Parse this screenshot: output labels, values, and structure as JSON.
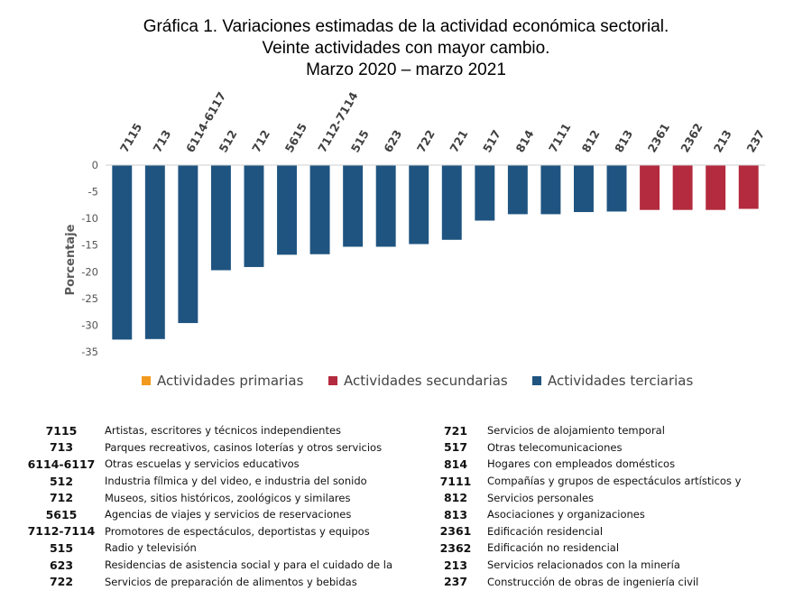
{
  "title_lines": [
    "Gráfica 1. Variaciones estimadas de la actividad económica sectorial.",
    "Veinte actividades con mayor cambio.",
    "Marzo 2020 – marzo 2021"
  ],
  "chart_data": {
    "type": "bar",
    "ylabel": "Porcentaje",
    "ylim": [
      -35,
      0
    ],
    "yticks": [
      0,
      -5,
      -10,
      -15,
      -20,
      -25,
      -30,
      -35
    ],
    "grid": false,
    "legend_position": "bottom",
    "categories": [
      "7115",
      "713",
      "6114-6117",
      "512",
      "712",
      "5615",
      "7112-7114",
      "515",
      "623",
      "722",
      "721",
      "517",
      "814",
      "7111",
      "812",
      "813",
      "2361",
      "2362",
      "213",
      "237"
    ],
    "values": [
      -32.7,
      -32.6,
      -29.6,
      -19.7,
      -19.1,
      -16.8,
      -16.7,
      -15.3,
      -15.3,
      -14.8,
      -14.0,
      -10.4,
      -9.2,
      -9.2,
      -8.8,
      -8.7,
      -8.4,
      -8.4,
      -8.4,
      -8.2
    ],
    "sector": [
      "terciarias",
      "terciarias",
      "terciarias",
      "terciarias",
      "terciarias",
      "terciarias",
      "terciarias",
      "terciarias",
      "terciarias",
      "terciarias",
      "terciarias",
      "terciarias",
      "terciarias",
      "terciarias",
      "terciarias",
      "terciarias",
      "secundarias",
      "secundarias",
      "secundarias",
      "secundarias"
    ],
    "legend": [
      {
        "key": "primarias",
        "label": "Actividades primarias",
        "color": "#F39A1E"
      },
      {
        "key": "secundarias",
        "label": "Actividades secundarias",
        "color": "#B42A3E"
      },
      {
        "key": "terciarias",
        "label": "Actividades terciarias",
        "color": "#1F5480"
      }
    ]
  },
  "code_table": {
    "left": [
      {
        "code": "7115",
        "desc": "Artistas, escritores y técnicos independientes"
      },
      {
        "code": "713",
        "desc": "Parques recreativos, casinos loterías y otros servicios"
      },
      {
        "code": "6114-6117",
        "desc": "Otras escuelas y servicios educativos"
      },
      {
        "code": "512",
        "desc": "Industria fílmica y del video, e industria del sonido"
      },
      {
        "code": "712",
        "desc": "Museos, sitios históricos, zoológicos y similares"
      },
      {
        "code": "5615",
        "desc": "Agencias de viajes y servicios de reservaciones"
      },
      {
        "code": "7112-7114",
        "desc": "Promotores de espectáculos, deportistas y equipos"
      },
      {
        "code": "515",
        "desc": "Radio y televisión"
      },
      {
        "code": "623",
        "desc": "Residencias de asistencia social y para el cuidado de la"
      },
      {
        "code": "722",
        "desc": "Servicios de preparación de alimentos y bebidas"
      }
    ],
    "right": [
      {
        "code": "721",
        "desc": "Servicios de alojamiento temporal"
      },
      {
        "code": "517",
        "desc": "Otras telecomunicaciones"
      },
      {
        "code": "814",
        "desc": "Hogares con empleados domésticos"
      },
      {
        "code": "7111",
        "desc": "Compañías y grupos de espectáculos artísticos y"
      },
      {
        "code": "812",
        "desc": "Servicios personales"
      },
      {
        "code": "813",
        "desc": "Asociaciones y organizaciones"
      },
      {
        "code": "2361",
        "desc": "Edificación residencial"
      },
      {
        "code": "2362",
        "desc": "Edificación no residencial"
      },
      {
        "code": "213",
        "desc": "Servicios relacionados con la minería"
      },
      {
        "code": "237",
        "desc": "Construcción de obras de ingeniería civil"
      }
    ]
  }
}
